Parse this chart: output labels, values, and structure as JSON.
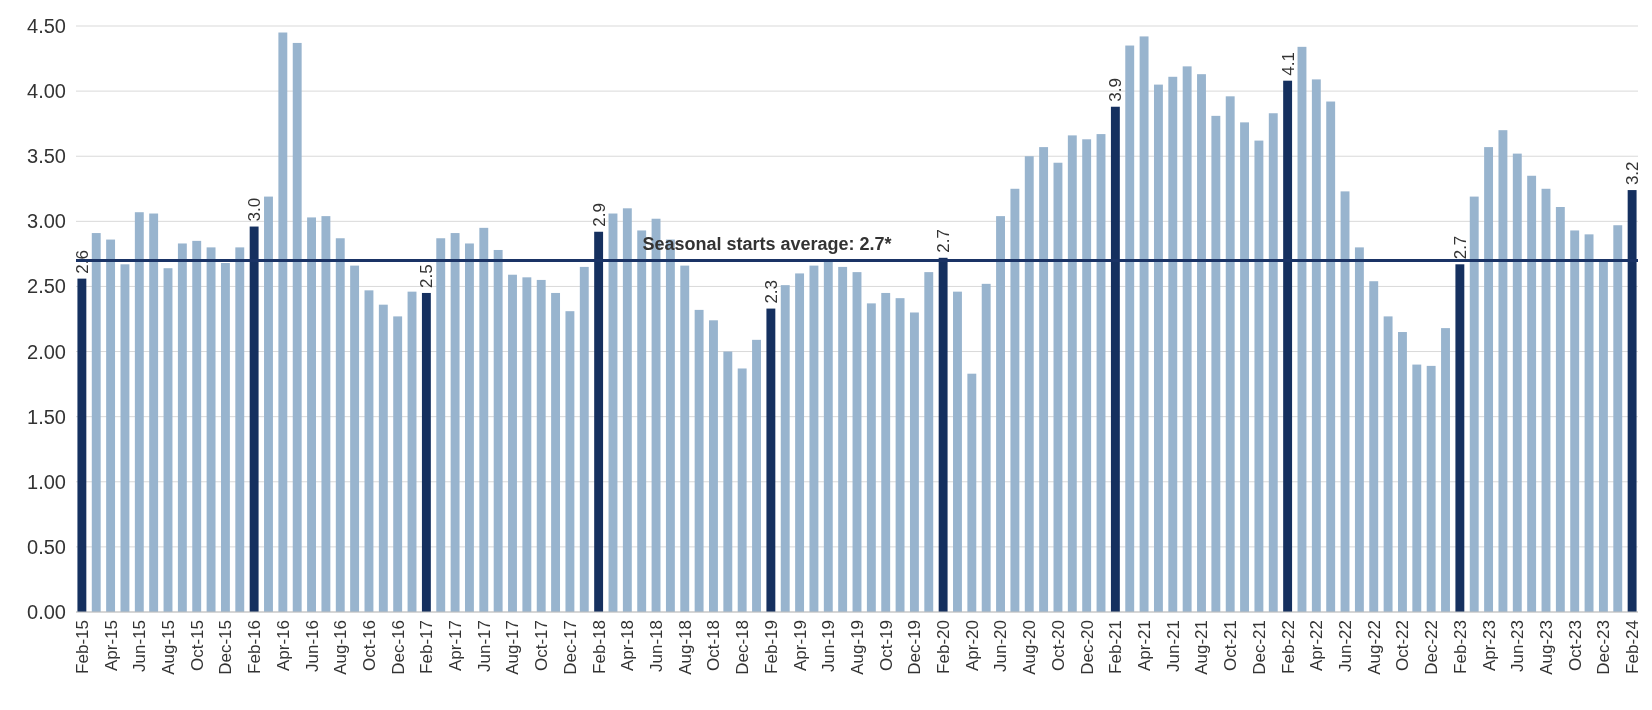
{
  "chart_data": {
    "type": "bar",
    "categories": [
      "Feb-15",
      null,
      "Apr-15",
      null,
      "Jun-15",
      null,
      "Aug-15",
      null,
      "Oct-15",
      null,
      "Dec-15",
      null,
      "Feb-16",
      null,
      "Apr-16",
      null,
      "Jun-16",
      null,
      "Aug-16",
      null,
      "Oct-16",
      null,
      "Dec-16",
      null,
      "Feb-17",
      null,
      "Apr-17",
      null,
      "Jun-17",
      null,
      "Aug-17",
      null,
      "Oct-17",
      null,
      "Dec-17",
      null,
      "Feb-18",
      null,
      "Apr-18",
      null,
      "Jun-18",
      null,
      "Aug-18",
      null,
      "Oct-18",
      null,
      "Dec-18",
      null,
      "Feb-19",
      null,
      "Apr-19",
      null,
      "Jun-19",
      null,
      "Aug-19",
      null,
      "Oct-19",
      null,
      "Dec-19",
      null,
      "Feb-20",
      null,
      "Apr-20",
      null,
      "Jun-20",
      null,
      "Aug-20",
      null,
      "Oct-20",
      null,
      "Dec-20",
      null,
      "Feb-21",
      null,
      "Apr-21",
      null,
      "Jun-21",
      null,
      "Aug-21",
      null,
      "Oct-21",
      null,
      "Dec-21",
      null,
      "Feb-22",
      null,
      "Apr-22",
      null,
      "Jun-22",
      null,
      "Aug-22",
      null,
      "Oct-22",
      null,
      "Dec-22",
      null,
      "Feb-23",
      null,
      "Apr-23",
      null,
      "Jun-23",
      null,
      "Aug-23",
      null,
      "Oct-23",
      null,
      "Dec-23",
      null,
      "Feb-24"
    ],
    "values": [
      2.56,
      2.91,
      2.86,
      2.67,
      3.07,
      3.06,
      2.64,
      2.83,
      2.85,
      2.8,
      2.68,
      2.8,
      2.96,
      3.19,
      4.45,
      4.37,
      3.03,
      3.04,
      2.87,
      2.66,
      2.47,
      2.36,
      2.27,
      2.46,
      2.45,
      2.87,
      2.91,
      2.83,
      2.95,
      2.78,
      2.59,
      2.57,
      2.55,
      2.45,
      2.31,
      2.65,
      2.92,
      3.06,
      3.1,
      2.93,
      3.02,
      2.86,
      2.66,
      2.32,
      2.24,
      2.0,
      1.87,
      2.09,
      2.33,
      2.51,
      2.6,
      2.66,
      2.71,
      2.65,
      2.61,
      2.37,
      2.45,
      2.41,
      2.3,
      2.61,
      2.72,
      2.46,
      1.83,
      2.52,
      3.04,
      3.25,
      3.5,
      3.57,
      3.45,
      3.66,
      3.63,
      3.67,
      3.88,
      4.35,
      4.42,
      4.05,
      4.11,
      4.19,
      4.13,
      3.81,
      3.96,
      3.76,
      3.62,
      3.83,
      4.08,
      4.34,
      4.09,
      3.92,
      3.23,
      2.8,
      2.54,
      2.27,
      2.15,
      1.9,
      1.89,
      2.18,
      2.67,
      3.19,
      3.57,
      3.7,
      3.52,
      3.35,
      3.25,
      3.11,
      2.93,
      2.9,
      2.69,
      2.97,
      3.24
    ],
    "colors": [
      "#15305f",
      "#98b4ce",
      "#98b4ce",
      "#98b4ce",
      "#98b4ce",
      "#98b4ce",
      "#98b4ce",
      "#98b4ce",
      "#98b4ce",
      "#98b4ce",
      "#98b4ce",
      "#98b4ce",
      "#15305f",
      "#98b4ce",
      "#98b4ce",
      "#98b4ce",
      "#98b4ce",
      "#98b4ce",
      "#98b4ce",
      "#98b4ce",
      "#98b4ce",
      "#98b4ce",
      "#98b4ce",
      "#98b4ce",
      "#15305f",
      "#98b4ce",
      "#98b4ce",
      "#98b4ce",
      "#98b4ce",
      "#98b4ce",
      "#98b4ce",
      "#98b4ce",
      "#98b4ce",
      "#98b4ce",
      "#98b4ce",
      "#98b4ce",
      "#15305f",
      "#98b4ce",
      "#98b4ce",
      "#98b4ce",
      "#98b4ce",
      "#98b4ce",
      "#98b4ce",
      "#98b4ce",
      "#98b4ce",
      "#98b4ce",
      "#98b4ce",
      "#98b4ce",
      "#15305f",
      "#98b4ce",
      "#98b4ce",
      "#98b4ce",
      "#98b4ce",
      "#98b4ce",
      "#98b4ce",
      "#98b4ce",
      "#98b4ce",
      "#98b4ce",
      "#98b4ce",
      "#98b4ce",
      "#15305f",
      "#98b4ce",
      "#98b4ce",
      "#98b4ce",
      "#98b4ce",
      "#98b4ce",
      "#98b4ce",
      "#98b4ce",
      "#98b4ce",
      "#98b4ce",
      "#98b4ce",
      "#98b4ce",
      "#15305f",
      "#98b4ce",
      "#98b4ce",
      "#98b4ce",
      "#98b4ce",
      "#98b4ce",
      "#98b4ce",
      "#98b4ce",
      "#98b4ce",
      "#98b4ce",
      "#98b4ce",
      "#98b4ce",
      "#15305f",
      "#98b4ce",
      "#98b4ce",
      "#98b4ce",
      "#98b4ce",
      "#98b4ce",
      "#98b4ce",
      "#98b4ce",
      "#98b4ce",
      "#98b4ce",
      "#98b4ce",
      "#98b4ce",
      "#15305f",
      "#98b4ce",
      "#98b4ce",
      "#98b4ce",
      "#98b4ce",
      "#98b4ce",
      "#98b4ce",
      "#98b4ce",
      "#98b4ce",
      "#98b4ce",
      "#98b4ce",
      "#98b4ce",
      "#15305f"
    ],
    "value_labels": [
      "2.6",
      null,
      null,
      null,
      null,
      null,
      null,
      null,
      null,
      null,
      null,
      null,
      "3.0",
      null,
      null,
      null,
      null,
      null,
      null,
      null,
      null,
      null,
      null,
      null,
      "2.5",
      null,
      null,
      null,
      null,
      null,
      null,
      null,
      null,
      null,
      null,
      null,
      "2.9",
      null,
      null,
      null,
      null,
      null,
      null,
      null,
      null,
      null,
      null,
      null,
      "2.3",
      null,
      null,
      null,
      null,
      null,
      null,
      null,
      null,
      null,
      null,
      null,
      "2.7",
      null,
      null,
      null,
      null,
      null,
      null,
      null,
      null,
      null,
      null,
      null,
      "3.9",
      null,
      null,
      null,
      null,
      null,
      null,
      null,
      null,
      null,
      null,
      null,
      "4.1",
      null,
      null,
      null,
      null,
      null,
      null,
      null,
      null,
      null,
      null,
      null,
      "2.7",
      null,
      null,
      null,
      null,
      null,
      null,
      null,
      null,
      null,
      null,
      null,
      "3.2"
    ],
    "ylim": [
      0,
      4.5
    ],
    "yticks": [
      {
        "value": 0,
        "label": "0.00"
      },
      {
        "value": 0.5,
        "label": "0.50"
      },
      {
        "value": 1,
        "label": "1.00"
      },
      {
        "value": 1.5,
        "label": "1.50"
      },
      {
        "value": 2,
        "label": "2.00"
      },
      {
        "value": 2.5,
        "label": "2.50"
      },
      {
        "value": 3,
        "label": "3.00"
      },
      {
        "value": 3.5,
        "label": "3.50"
      },
      {
        "value": 4,
        "label": "4.00"
      },
      {
        "value": 4.5,
        "label": "4.50"
      }
    ],
    "grid": "y",
    "ref_lines": [
      {
        "axis": "y",
        "value": 2.7,
        "label": "Seasonal starts average: 2.7*",
        "color": "#1a3365"
      }
    ]
  }
}
